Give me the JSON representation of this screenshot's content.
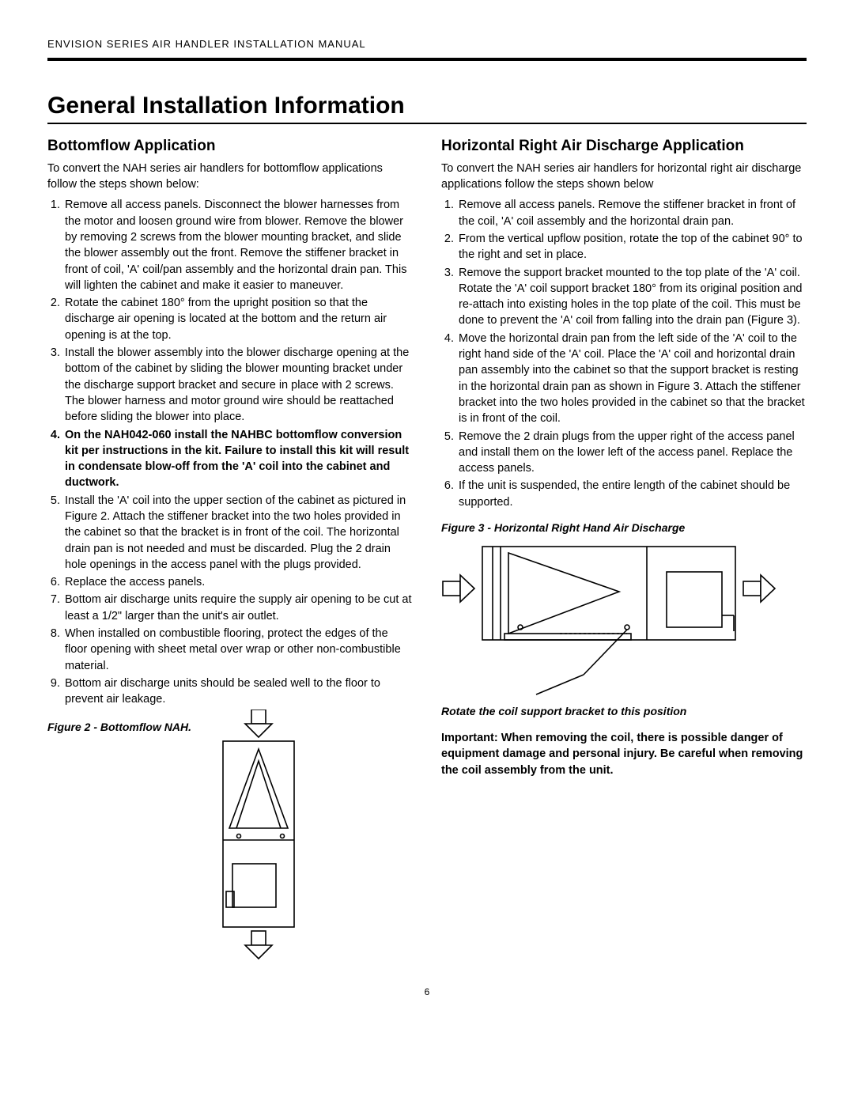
{
  "header": "ENVISION SERIES AIR HANDLER INSTALLATION MANUAL",
  "main_title": "General Installation Information",
  "page_number": "6",
  "left": {
    "title": "Bottomflow Application",
    "intro": "To convert the NAH series air handlers for bottomflow applications follow the steps shown below:",
    "items": [
      {
        "text": " Remove all access panels. Disconnect the blower harnesses from the motor and loosen ground wire from blower. Remove the blower by removing 2 screws from the blower mounting bracket, and slide the blower assembly out the front. Remove the stiffener bracket in front of coil, 'A' coil/pan assembly and the horizontal drain pan. This will lighten the cabinet and make it easier to maneuver.",
        "bold": false
      },
      {
        "text": "Rotate the cabinet 180° from the upright position so that the discharge air opening is located at the bottom and the return air opening is at the top.",
        "bold": false
      },
      {
        "text": "Install the blower assembly into the blower discharge opening at the bottom of the cabinet by sliding the blower mounting bracket under the discharge support bracket and secure in place with 2 screws. The blower harness and motor ground wire should be reattached before sliding the blower into place.",
        "bold": false
      },
      {
        "text": "On the NAH042-060 install the NAHBC bottomflow conversion kit per instructions in the kit. Failure to install this kit will result in condensate blow-off from the 'A' coil into the cabinet and ductwork.",
        "bold": true
      },
      {
        "text": "Install the 'A' coil into the upper section of the cabinet as pictured in Figure 2. Attach the stiffener bracket into the two holes provided in the cabinet so that the bracket is in front of the coil. The horizontal drain pan is not needed and must be discarded. Plug the 2 drain hole openings in the access panel with the plugs provided.",
        "bold": false
      },
      {
        "text": "Replace the access panels.",
        "bold": false
      },
      {
        "text": "Bottom air discharge units require the supply air opening to be cut at least a 1/2\" larger than the unit's air outlet.",
        "bold": false
      },
      {
        "text": "When installed on combustible flooring, protect the edges of the floor opening with sheet metal over wrap or other non-combustible material.",
        "bold": false
      },
      {
        "text": "Bottom air discharge units should be sealed well to the floor to prevent air leakage.",
        "bold": false
      }
    ],
    "figure_caption": "Figure 2 - Bottomflow NAH."
  },
  "right": {
    "title": "Horizontal Right Air Discharge Application",
    "intro": "To convert the NAH series air handlers for horizontal right air discharge applications follow the steps shown below",
    "items": [
      {
        "text": "Remove all access panels.  Remove the stiffener bracket in front of the coil, 'A' coil assembly and the horizontal drain pan.",
        "bold": false
      },
      {
        "text": "From the vertical upflow position, rotate the top of the cabinet 90° to the right and set in place.",
        "bold": false
      },
      {
        "text": "Remove the support bracket mounted to the top plate of the 'A' coil.  Rotate the 'A' coil support bracket 180° from its original position and re-attach into existing holes in the top plate of the coil.  This must be done to prevent the 'A' coil from falling into the drain pan (Figure 3).",
        "bold": false
      },
      {
        "text": "Move the horizontal drain pan from the left side of the 'A' coil to the right hand side of the 'A' coil.  Place the 'A' coil and horizontal drain pan assembly into the cabinet so that the support bracket is resting in the horizontal drain pan as shown in Figure 3. Attach the stiffener bracket into the two holes provided in the cabinet so that the bracket is in front of the coil.",
        "bold": false
      },
      {
        "text": "Remove the 2 drain plugs from the upper right of the access panel and install them on the lower left of the access panel. Replace the access panels.",
        "bold": false
      },
      {
        "text": "If the unit is suspended, the entire length of the cabinet should be supported.",
        "bold": false
      }
    ],
    "figure_caption": "Figure 3 - Horizontal Right Hand Air Discharge",
    "note_caption": "Rotate the coil support bracket to this position",
    "important": "Important:  When removing the coil, there is possible danger of equipment damage and personal injury.  Be careful when removing the coil assembly from the unit."
  },
  "diagram_style": {
    "stroke": "#000000",
    "stroke_width": 1.6,
    "fill": "#ffffff"
  }
}
